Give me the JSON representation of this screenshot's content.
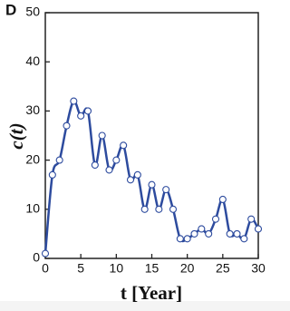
{
  "chart_data": {
    "type": "line",
    "title": "D",
    "ylabel": "c(t)",
    "xlabel": "t [Year]",
    "x": [
      0,
      1,
      2,
      3,
      4,
      5,
      6,
      7,
      8,
      9,
      10,
      11,
      12,
      13,
      14,
      15,
      16,
      17,
      18,
      19,
      20,
      21,
      22,
      23,
      24,
      25,
      26,
      27,
      28,
      29,
      30
    ],
    "values": [
      1,
      17,
      20,
      27,
      32,
      29,
      30,
      19,
      25,
      18,
      20,
      23,
      16,
      17,
      10,
      15,
      10,
      14,
      10,
      4,
      4,
      5,
      6,
      5,
      8,
      12,
      5,
      5,
      4,
      8,
      6
    ],
    "color": "#2d4b9e",
    "xlim": [
      0,
      30
    ],
    "xticks": [
      0,
      5,
      10,
      15,
      20,
      25,
      30
    ],
    "ylim": [
      0,
      50
    ],
    "yticks": [
      0,
      10,
      20,
      30,
      40,
      50
    ]
  }
}
